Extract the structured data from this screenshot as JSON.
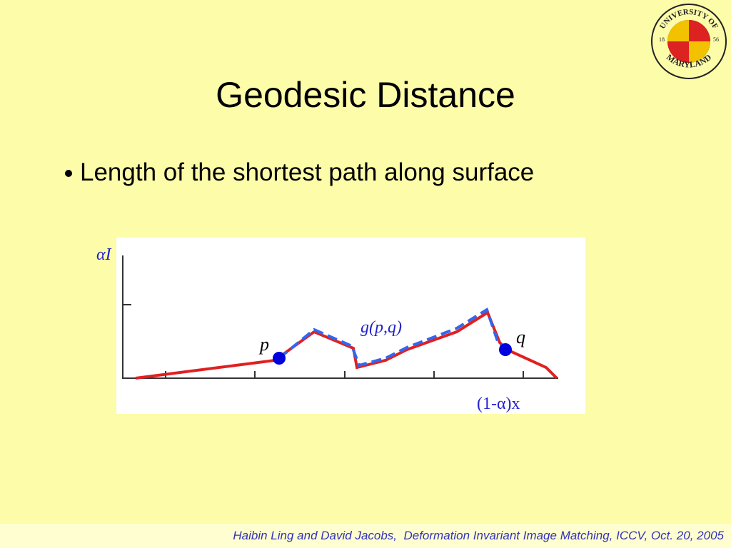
{
  "header": {
    "title": "Geodesic Distance"
  },
  "bullets": [
    "Length of the shortest path along surface"
  ],
  "figure": {
    "y_label": "αI",
    "x_label": "(1-α)x",
    "point_p": "p",
    "point_q": "q",
    "path_label": "g(p,q)"
  },
  "logo": {
    "top": "UNIVERSITY OF",
    "bottom": "MARYLAND",
    "year_left": "18",
    "year_right": "56"
  },
  "footer": "Haibin Ling and David Jacobs,  Deformation Invariant Image Matching, ICCV, Oct. 20, 2005"
}
